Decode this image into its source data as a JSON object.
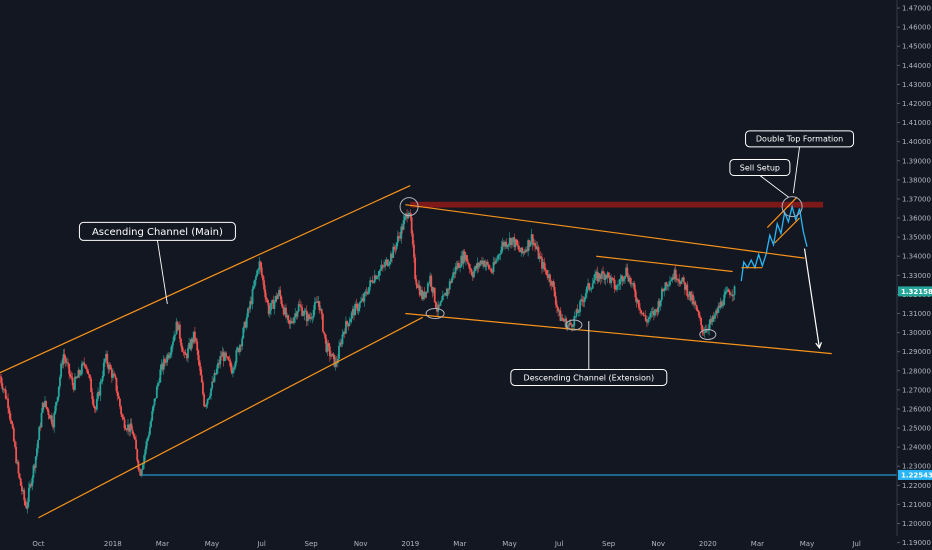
{
  "chart_data": {
    "type": "candlestick",
    "y_ticks": [
      "1.47000",
      "1.46000",
      "1.45000",
      "1.44000",
      "1.43000",
      "1.42000",
      "1.41000",
      "1.40000",
      "1.39000",
      "1.38000",
      "1.37000",
      "1.36000",
      "1.35000",
      "1.34000",
      "1.33000",
      "1.32000",
      "1.31000",
      "1.30000",
      "1.29000",
      "1.28000",
      "1.27000",
      "1.26000",
      "1.25000",
      "1.24000",
      "1.23000",
      "1.22000",
      "1.21000",
      "1.20000",
      "1.19000"
    ],
    "x_ticks": [
      {
        "label": "Oct",
        "month": 9
      },
      {
        "label": "2018",
        "month": 12
      },
      {
        "label": "Mar",
        "month": 14
      },
      {
        "label": "May",
        "month": 16
      },
      {
        "label": "Jul",
        "month": 18
      },
      {
        "label": "Sep",
        "month": 20
      },
      {
        "label": "Nov",
        "month": 22
      },
      {
        "label": "2019",
        "month": 24
      },
      {
        "label": "Mar",
        "month": 26
      },
      {
        "label": "May",
        "month": 28
      },
      {
        "label": "Jul",
        "month": 30
      },
      {
        "label": "Sep",
        "month": 32
      },
      {
        "label": "Nov",
        "month": 34
      },
      {
        "label": "2020",
        "month": 36
      },
      {
        "label": "Mar",
        "month": 38
      },
      {
        "label": "May",
        "month": 40
      },
      {
        "label": "Jul",
        "month": 42
      }
    ],
    "x_range_months": [
      7.45,
      43.55
    ],
    "y_range": [
      1.18612,
      1.47422
    ],
    "current_price": {
      "label": "1.32158",
      "value": 1.32158,
      "color": "#26a69a"
    },
    "horizontal_level": {
      "label": "1.22543",
      "value": 1.22543,
      "color": "#29b6f6"
    },
    "resistance_zone": {
      "low": 1.3655,
      "high": 1.3685,
      "color": "#8b1a1a"
    },
    "price_path": [
      {
        "month": 7.45,
        "price": 1.277
      },
      {
        "month": 7.8,
        "price": 1.262
      },
      {
        "month": 8.2,
        "price": 1.225
      },
      {
        "month": 8.5,
        "price": 1.208
      },
      {
        "month": 8.9,
        "price": 1.236
      },
      {
        "month": 9.2,
        "price": 1.264
      },
      {
        "month": 9.6,
        "price": 1.253
      },
      {
        "month": 10.0,
        "price": 1.289
      },
      {
        "month": 10.4,
        "price": 1.272
      },
      {
        "month": 10.9,
        "price": 1.285
      },
      {
        "month": 11.3,
        "price": 1.259
      },
      {
        "month": 11.7,
        "price": 1.287
      },
      {
        "month": 12.1,
        "price": 1.274
      },
      {
        "month": 12.4,
        "price": 1.254
      },
      {
        "month": 12.8,
        "price": 1.248
      },
      {
        "month": 13.1,
        "price": 1.226
      },
      {
        "month": 13.5,
        "price": 1.251
      },
      {
        "month": 13.9,
        "price": 1.279
      },
      {
        "month": 14.3,
        "price": 1.291
      },
      {
        "month": 14.6,
        "price": 1.305
      },
      {
        "month": 14.9,
        "price": 1.286
      },
      {
        "month": 15.3,
        "price": 1.299
      },
      {
        "month": 15.7,
        "price": 1.262
      },
      {
        "month": 16.0,
        "price": 1.272
      },
      {
        "month": 16.4,
        "price": 1.289
      },
      {
        "month": 16.8,
        "price": 1.281
      },
      {
        "month": 17.2,
        "price": 1.297
      },
      {
        "month": 17.6,
        "price": 1.318
      },
      {
        "month": 17.9,
        "price": 1.337
      },
      {
        "month": 18.3,
        "price": 1.311
      },
      {
        "month": 18.7,
        "price": 1.321
      },
      {
        "month": 19.1,
        "price": 1.303
      },
      {
        "month": 19.5,
        "price": 1.314
      },
      {
        "month": 19.9,
        "price": 1.307
      },
      {
        "month": 20.3,
        "price": 1.317
      },
      {
        "month": 20.6,
        "price": 1.293
      },
      {
        "month": 21.0,
        "price": 1.283
      },
      {
        "month": 21.3,
        "price": 1.301
      },
      {
        "month": 21.7,
        "price": 1.311
      },
      {
        "month": 22.1,
        "price": 1.317
      },
      {
        "month": 22.5,
        "price": 1.329
      },
      {
        "month": 22.9,
        "price": 1.334
      },
      {
        "month": 23.3,
        "price": 1.342
      },
      {
        "month": 23.7,
        "price": 1.356
      },
      {
        "month": 23.95,
        "price": 1.366
      },
      {
        "month": 24.2,
        "price": 1.329
      },
      {
        "month": 24.5,
        "price": 1.318
      },
      {
        "month": 24.8,
        "price": 1.329
      },
      {
        "month": 25.1,
        "price": 1.311
      },
      {
        "month": 25.4,
        "price": 1.319
      },
      {
        "month": 25.8,
        "price": 1.333
      },
      {
        "month": 26.2,
        "price": 1.341
      },
      {
        "month": 26.5,
        "price": 1.331
      },
      {
        "month": 26.9,
        "price": 1.338
      },
      {
        "month": 27.3,
        "price": 1.332
      },
      {
        "month": 27.7,
        "price": 1.346
      },
      {
        "month": 28.1,
        "price": 1.349
      },
      {
        "month": 28.5,
        "price": 1.341
      },
      {
        "month": 28.9,
        "price": 1.35
      },
      {
        "month": 29.3,
        "price": 1.336
      },
      {
        "month": 29.7,
        "price": 1.327
      },
      {
        "month": 30.0,
        "price": 1.309
      },
      {
        "month": 30.4,
        "price": 1.303
      },
      {
        "month": 30.7,
        "price": 1.309
      },
      {
        "month": 31.1,
        "price": 1.322
      },
      {
        "month": 31.5,
        "price": 1.329
      },
      {
        "month": 31.9,
        "price": 1.331
      },
      {
        "month": 32.3,
        "price": 1.323
      },
      {
        "month": 32.7,
        "price": 1.333
      },
      {
        "month": 33.1,
        "price": 1.319
      },
      {
        "month": 33.5,
        "price": 1.306
      },
      {
        "month": 33.9,
        "price": 1.311
      },
      {
        "month": 34.3,
        "price": 1.326
      },
      {
        "month": 34.7,
        "price": 1.331
      },
      {
        "month": 35.1,
        "price": 1.324
      },
      {
        "month": 35.5,
        "price": 1.313
      },
      {
        "month": 35.8,
        "price": 1.301
      },
      {
        "month": 36.2,
        "price": 1.306
      },
      {
        "month": 36.6,
        "price": 1.317
      },
      {
        "month": 36.9,
        "price": 1.322
      },
      {
        "month": 37.1,
        "price": 1.3216
      }
    ],
    "projection_path": [
      {
        "month": 37.35,
        "price": 1.327
      },
      {
        "month": 37.45,
        "price": 1.337
      },
      {
        "month": 37.6,
        "price": 1.334
      },
      {
        "month": 37.75,
        "price": 1.338
      },
      {
        "month": 37.9,
        "price": 1.334
      },
      {
        "month": 38.05,
        "price": 1.341
      },
      {
        "month": 38.2,
        "price": 1.335
      },
      {
        "month": 38.35,
        "price": 1.341
      },
      {
        "month": 38.5,
        "price": 1.351
      },
      {
        "month": 38.65,
        "price": 1.346
      },
      {
        "month": 38.8,
        "price": 1.357
      },
      {
        "month": 38.95,
        "price": 1.352
      },
      {
        "month": 39.1,
        "price": 1.363
      },
      {
        "month": 39.25,
        "price": 1.358
      },
      {
        "month": 39.4,
        "price": 1.366
      },
      {
        "month": 39.55,
        "price": 1.359
      },
      {
        "month": 39.7,
        "price": 1.365
      },
      {
        "month": 39.85,
        "price": 1.353
      },
      {
        "month": 40.0,
        "price": 1.345
      }
    ],
    "trendlines": [
      {
        "name": "ascending-upper",
        "color": "#f7931a",
        "from": {
          "month": 7.45,
          "price": 1.279
        },
        "to": {
          "month": 24.0,
          "price": 1.377
        }
      },
      {
        "name": "ascending-lower",
        "color": "#f7931a",
        "from": {
          "month": 9.0,
          "price": 1.203
        },
        "to": {
          "month": 24.5,
          "price": 1.308
        }
      },
      {
        "name": "descending-upper",
        "color": "#f7931a",
        "from": {
          "month": 23.8,
          "price": 1.367
        },
        "to": {
          "month": 39.9,
          "price": 1.339
        }
      },
      {
        "name": "descending-lower",
        "color": "#f7931a",
        "from": {
          "month": 23.8,
          "price": 1.31
        },
        "to": {
          "month": 41.0,
          "price": 1.289
        }
      },
      {
        "name": "inner-resistance",
        "color": "#f7931a",
        "from": {
          "month": 31.5,
          "price": 1.34
        },
        "to": {
          "month": 37.0,
          "price": 1.332
        }
      },
      {
        "name": "rising-wedge-upper",
        "color": "#f7931a",
        "from": {
          "month": 38.4,
          "price": 1.355
        },
        "to": {
          "month": 39.6,
          "price": 1.371
        }
      },
      {
        "name": "rising-wedge-lower",
        "color": "#f7931a",
        "from": {
          "month": 38.7,
          "price": 1.347
        },
        "to": {
          "month": 39.7,
          "price": 1.36
        }
      },
      {
        "name": "base-line",
        "color": "#f7931a",
        "from": {
          "month": 37.35,
          "price": 1.334
        },
        "to": {
          "month": 38.2,
          "price": 1.334
        }
      }
    ],
    "circles": [
      {
        "month": 23.95,
        "price": 1.366,
        "rx": 9,
        "ry": 9
      },
      {
        "month": 25.0,
        "price": 1.31,
        "rx": 9,
        "ry": 5
      },
      {
        "month": 30.6,
        "price": 1.304,
        "rx": 8,
        "ry": 5
      },
      {
        "month": 36.0,
        "price": 1.299,
        "rx": 8,
        "ry": 5
      },
      {
        "month": 39.4,
        "price": 1.366,
        "rx": 10,
        "ry": 10
      }
    ],
    "forecast_arrow": {
      "color": "#ffffff",
      "from": {
        "month": 39.9,
        "price": 1.344
      },
      "to": {
        "month": 40.5,
        "price": 1.292
      }
    },
    "annotations": [
      {
        "text": "Ascending Channel (Main)",
        "month": 13.8,
        "price": 1.353,
        "size": 10,
        "pointer_to": {
          "month": 14.2,
          "price": 1.315
        }
      },
      {
        "text": "Descending Channel (Extension)",
        "month": 31.2,
        "price": 1.2765,
        "size": 8,
        "pointer_to": {
          "month": 31.2,
          "price": 1.306
        }
      },
      {
        "text": "Sell Setup",
        "month": 38.1,
        "price": 1.3865,
        "size": 8,
        "pointer_to": {
          "month": 39.25,
          "price": 1.371
        }
      },
      {
        "text": "Double Top Formation",
        "month": 39.7,
        "price": 1.4015,
        "size": 8,
        "pointer_to": {
          "month": 39.45,
          "price": 1.373
        }
      }
    ]
  }
}
